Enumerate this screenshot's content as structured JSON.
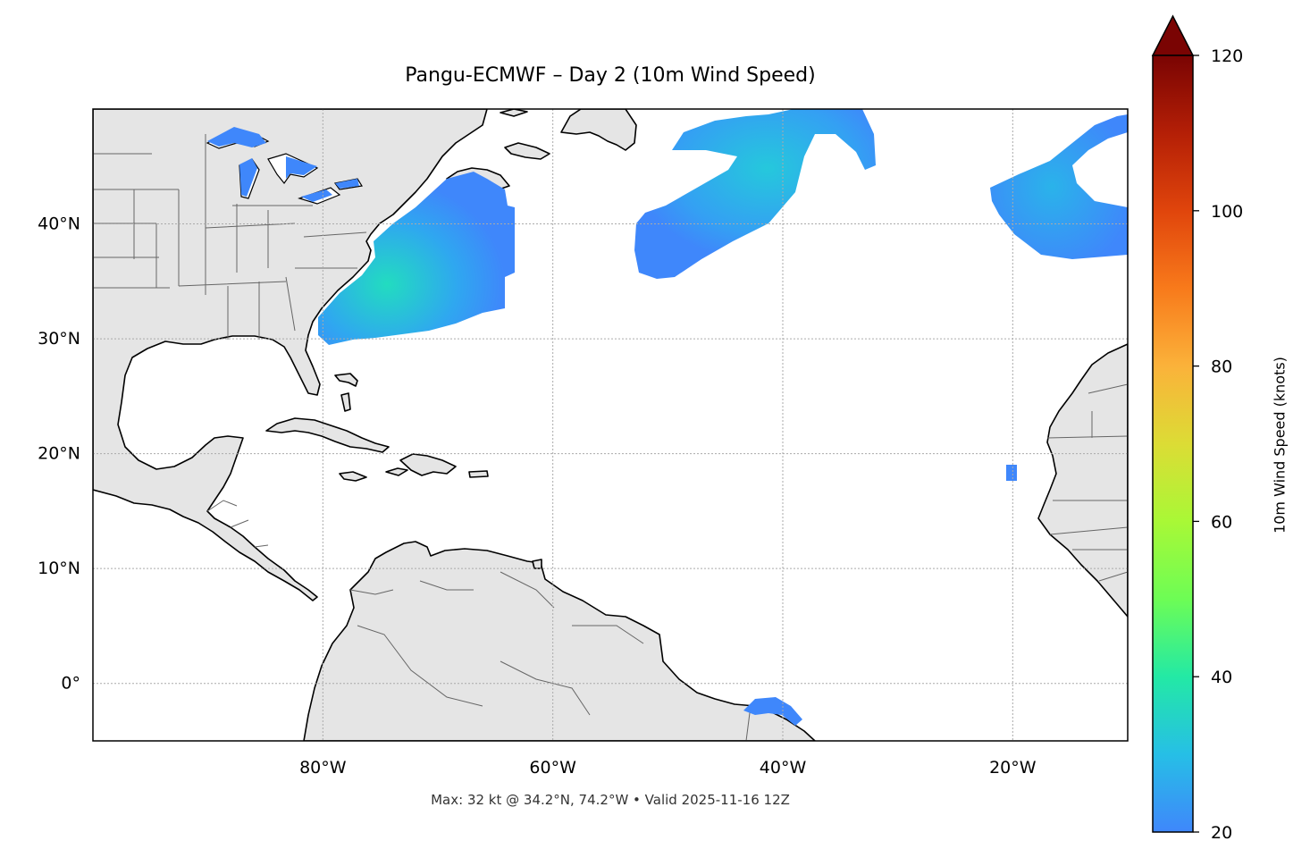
{
  "title": "Pangu-ECMWF – Day 2 (10m Wind Speed)",
  "footer": "Max: 32 kt @ 34.2°N, 74.2°W • Valid 2025-11-16 12Z",
  "map": {
    "lon_range": [
      -100,
      -10
    ],
    "lat_range": [
      -5,
      50
    ],
    "lat_ticks": [
      {
        "value": 40,
        "label": "40°N"
      },
      {
        "value": 30,
        "label": "30°N"
      },
      {
        "value": 20,
        "label": "20°N"
      },
      {
        "value": 10,
        "label": "10°N"
      },
      {
        "value": 0,
        "label": "0°"
      }
    ],
    "lon_ticks": [
      {
        "value": -80,
        "label": "80°W"
      },
      {
        "value": -60,
        "label": "60°W"
      },
      {
        "value": -40,
        "label": "40°W"
      },
      {
        "value": -20,
        "label": "20°W"
      }
    ],
    "land_color": "#e5e5e5",
    "ocean_color": "#ffffff",
    "gridlines": true,
    "wind_regions": [
      {
        "name": "us-east-coast",
        "max_kt": 32
      },
      {
        "name": "central-north-atlantic",
        "max_kt": 28
      },
      {
        "name": "eastern-north-atlantic",
        "max_kt": 25
      },
      {
        "name": "south-atlantic-brazil",
        "max_kt": 22
      },
      {
        "name": "cape-verde-spot",
        "max_kt": 21
      }
    ]
  },
  "colorbar": {
    "label": "10m Wind Speed (knots)",
    "min": 20,
    "max": 120,
    "extend": "max",
    "ticks": [
      {
        "value": 20,
        "label": "20"
      },
      {
        "value": 40,
        "label": "40"
      },
      {
        "value": 60,
        "label": "60"
      },
      {
        "value": 80,
        "label": "80"
      },
      {
        "value": 100,
        "label": "100"
      },
      {
        "value": 120,
        "label": "120"
      }
    ],
    "colormap": [
      "#3f87fb",
      "#26bfe6",
      "#23e9a5",
      "#6dfd55",
      "#a9f836",
      "#dcdc35",
      "#fbb23a",
      "#f87a1b",
      "#e0450c",
      "#b41f06",
      "#7a0403"
    ]
  }
}
